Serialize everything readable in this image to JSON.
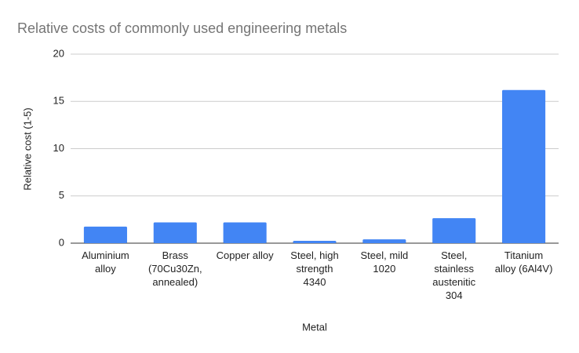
{
  "chart_data": {
    "type": "bar",
    "title": "Relative costs of commonly used engineering metals",
    "x_label": "Metal",
    "y_label": "Relative cost (1-5)",
    "categories": [
      "Aluminium alloy",
      "Brass (70Cu30Zn, annealed)",
      "Copper alloy",
      "Steel, high strength 4340",
      "Steel, mild 1020",
      "Steel, stainless austenitic 304",
      "Titanium alloy (6Al4V)"
    ],
    "values": [
      1.75,
      2.2,
      2.2,
      0.25,
      0.4,
      2.65,
      16.2
    ],
    "color": "#4285f4",
    "ylim": [
      0,
      20
    ],
    "yticks": [
      0,
      5,
      10,
      15,
      20
    ],
    "grid": true
  }
}
